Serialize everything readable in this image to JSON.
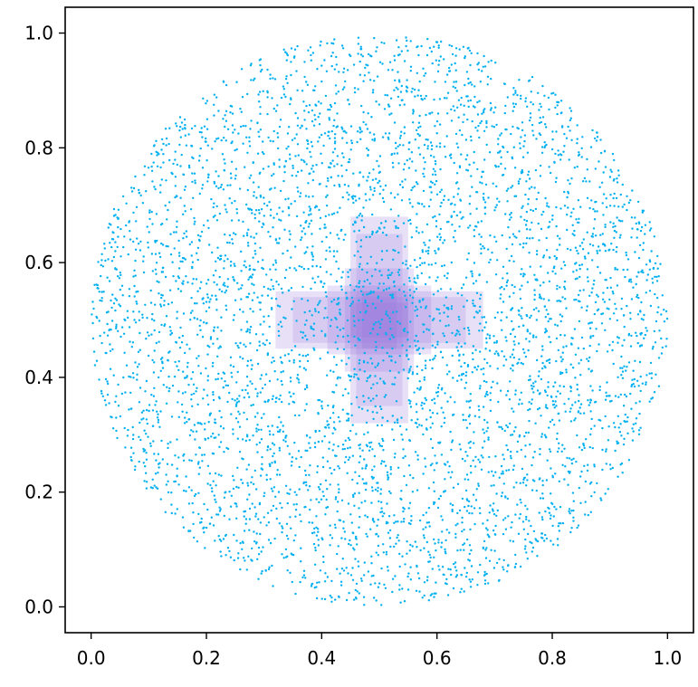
{
  "chart_data": {
    "type": "scatter",
    "title": "",
    "xlabel": "",
    "ylabel": "",
    "xlim": [
      -0.045,
      1.045
    ],
    "ylim": [
      -0.045,
      1.045
    ],
    "x_ticks": [
      "0.0",
      "0.2",
      "0.4",
      "0.6",
      "0.8",
      "1.0"
    ],
    "y_ticks": [
      "0.0",
      "0.2",
      "0.4",
      "0.6",
      "0.8",
      "1.0"
    ],
    "grid": false,
    "legend": "none",
    "colors": {
      "points": "#00b0f0",
      "overlay": "#9370db",
      "axes": "#000000"
    },
    "point_cloud": {
      "shape": "disk",
      "center": [
        0.5,
        0.5
      ],
      "radius": 0.5,
      "approx_count": 5000,
      "marker_size_data": 0.0028,
      "density": "roughly uniform, slightly denser near the rim and the center"
    },
    "overlay_cells": [
      {
        "x0": 0.45,
        "x1": 0.55,
        "y0": 0.32,
        "y1": 0.68,
        "alpha": 0.22
      },
      {
        "x0": 0.32,
        "x1": 0.68,
        "y0": 0.45,
        "y1": 0.55,
        "alpha": 0.22
      },
      {
        "x0": 0.46,
        "x1": 0.54,
        "y0": 0.35,
        "y1": 0.65,
        "alpha": 0.18
      },
      {
        "x0": 0.35,
        "x1": 0.65,
        "y0": 0.46,
        "y1": 0.54,
        "alpha": 0.18
      },
      {
        "x0": 0.44,
        "x1": 0.56,
        "y0": 0.41,
        "y1": 0.59,
        "alpha": 0.2
      },
      {
        "x0": 0.41,
        "x1": 0.59,
        "y0": 0.44,
        "y1": 0.56,
        "alpha": 0.2
      },
      {
        "x0": 0.47,
        "x1": 0.53,
        "y0": 0.45,
        "y1": 0.55,
        "alpha": 0.22
      },
      {
        "x0": 0.45,
        "x1": 0.55,
        "y0": 0.47,
        "y1": 0.53,
        "alpha": 0.22
      }
    ]
  }
}
